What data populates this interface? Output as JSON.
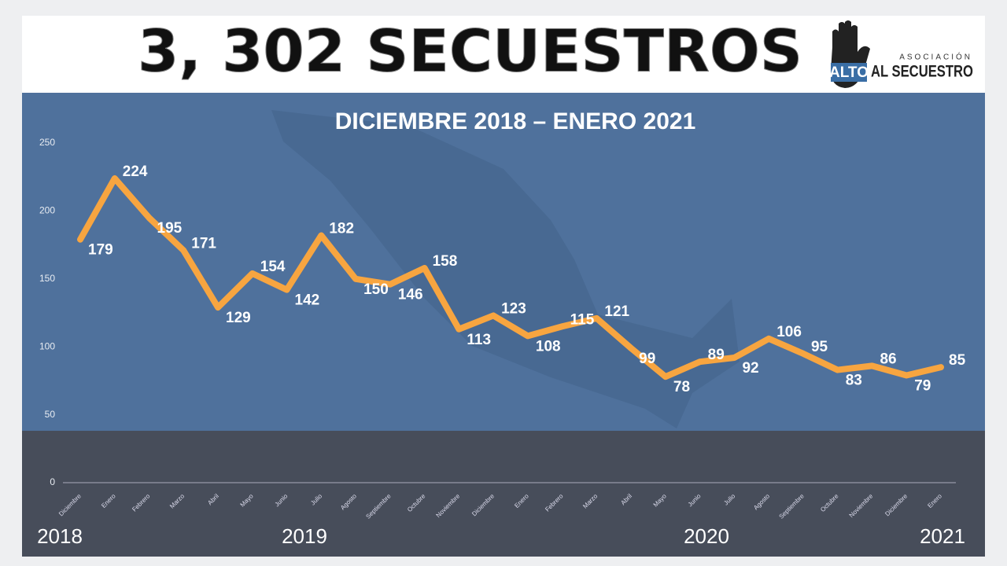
{
  "chart_data": {
    "type": "line",
    "title": "3, 302 SECUESTROS",
    "subtitle": "DICIEMBRE 2018 – ENERO 2021",
    "logo": {
      "top": "ASOCIACIÓN",
      "mid": "ALTO",
      "bottom": "AL SECUESTRO"
    },
    "categories": [
      "Diciembre",
      "Enero",
      "Febrero",
      "Marzo",
      "Abril",
      "Mayo",
      "Junio",
      "Julio",
      "Agosto",
      "Septiembre",
      "Octubre",
      "Noviembre",
      "Diciembre",
      "Enero",
      "Febrero",
      "Marzo",
      "Abril",
      "Mayo",
      "Junio",
      "Julio",
      "Agosto",
      "Septiembre",
      "Octubre",
      "Noviembre",
      "Diciembre",
      "Enero"
    ],
    "series": [
      {
        "color": "#f7a540",
        "values": [
          179,
          224,
          195,
          171,
          129,
          154,
          142,
          182,
          150,
          146,
          158,
          113,
          123,
          108,
          115,
          121,
          99,
          78,
          89,
          92,
          106,
          95,
          83,
          86,
          79,
          85
        ]
      }
    ],
    "years": [
      "2018",
      "2019",
      "2020",
      "2021"
    ],
    "ylim": [
      0,
      250
    ],
    "yticks": [
      0,
      50,
      100,
      150,
      200,
      250
    ]
  }
}
